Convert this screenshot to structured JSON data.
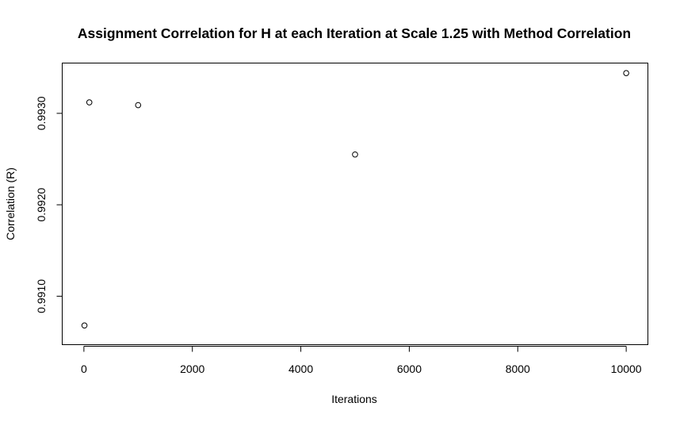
{
  "chart_data": {
    "type": "scatter",
    "title": "Assignment Correlation for H at each Iteration at Scale 1.25 with Method Correlation",
    "xlabel": "Iterations",
    "ylabel": "Correlation (R)",
    "xlim": [
      -400,
      10400
    ],
    "ylim": [
      0.99047,
      0.99355
    ],
    "x_ticks": [
      0,
      2000,
      4000,
      6000,
      8000,
      10000
    ],
    "x_tick_labels": [
      "0",
      "2000",
      "4000",
      "6000",
      "8000",
      "10000"
    ],
    "y_ticks": [
      0.991,
      0.992,
      0.993
    ],
    "y_tick_labels": [
      "0.9910",
      "0.9920",
      "0.9930"
    ],
    "grid": false,
    "points": [
      {
        "x": 10,
        "y": 0.99068
      },
      {
        "x": 100,
        "y": 0.99312
      },
      {
        "x": 1000,
        "y": 0.99309
      },
      {
        "x": 5000,
        "y": 0.99255
      },
      {
        "x": 10000,
        "y": 0.99344
      }
    ],
    "marker": "open-circle",
    "marker_color": "#000000"
  }
}
